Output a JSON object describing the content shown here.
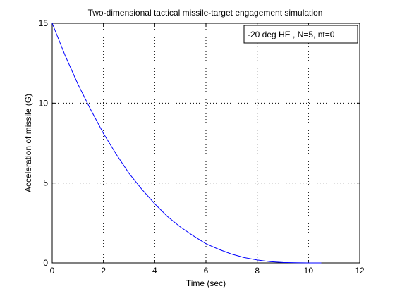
{
  "chart_data": {
    "type": "line",
    "title": "Two-dimensional tactical missile-target engagement simulation",
    "xlabel": "Time (sec)",
    "ylabel": "Acceleration of missile (G)",
    "xlim": [
      0,
      12
    ],
    "ylim": [
      0,
      15
    ],
    "xticks": [
      0,
      2,
      4,
      6,
      8,
      10,
      12
    ],
    "yticks": [
      0,
      5,
      10,
      15
    ],
    "grid": true,
    "legend": {
      "placement": "top-right",
      "entries": [
        "-20 deg HE , N=5, nt=0"
      ]
    },
    "series": [
      {
        "name": "-20 deg HE , N=5, nt=0",
        "color": "#0000ff",
        "x": [
          0,
          0.5,
          1,
          1.5,
          2,
          2.5,
          3,
          3.5,
          4,
          4.5,
          5,
          5.5,
          6,
          6.5,
          7,
          7.5,
          8,
          8.5,
          9,
          9.5,
          10,
          10.5
        ],
        "y": [
          15,
          13.0,
          11.2,
          9.6,
          8.1,
          6.8,
          5.6,
          4.6,
          3.7,
          2.9,
          2.25,
          1.7,
          1.2,
          0.85,
          0.55,
          0.33,
          0.18,
          0.08,
          0.03,
          0.01,
          0.0,
          0.0
        ]
      }
    ]
  }
}
